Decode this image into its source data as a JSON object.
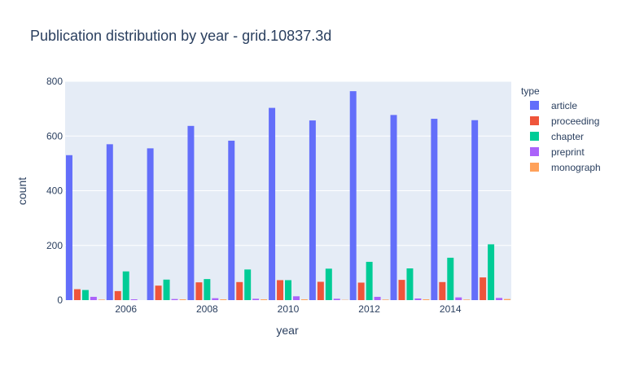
{
  "chart_data": {
    "type": "bar",
    "title": "Publication distribution by year - grid.10837.3d",
    "xlabel": "year",
    "ylabel": "count",
    "legend_title": "type",
    "legend_position": "right",
    "grid": true,
    "ylim": [
      0,
      800
    ],
    "y_ticks": [
      0,
      200,
      400,
      600,
      800
    ],
    "x_tick_labels": [
      "2006",
      "2008",
      "2010",
      "2012",
      "2014"
    ],
    "x_ticks": [
      2006,
      2008,
      2010,
      2012,
      2014
    ],
    "x": [
      2005,
      2006,
      2007,
      2008,
      2009,
      2010,
      2011,
      2012,
      2013,
      2014,
      2015
    ],
    "series": [
      {
        "name": "article",
        "color": "#636efa",
        "values": [
          530,
          570,
          555,
          637,
          583,
          703,
          657,
          764,
          677,
          663,
          658
        ]
      },
      {
        "name": "proceeding",
        "color": "#EF553B",
        "values": [
          40,
          33,
          53,
          65,
          66,
          73,
          67,
          64,
          74,
          66,
          83
        ]
      },
      {
        "name": "chapter",
        "color": "#00cc96",
        "values": [
          37,
          105,
          75,
          77,
          112,
          73,
          115,
          140,
          116,
          155,
          204
        ]
      },
      {
        "name": "preprint",
        "color": "#ab63fa",
        "values": [
          12,
          3,
          4,
          7,
          5,
          14,
          5,
          12,
          6,
          10,
          8
        ]
      },
      {
        "name": "monograph",
        "color": "#FFA15A",
        "values": [
          2,
          0,
          3,
          3,
          3,
          3,
          1,
          2,
          3,
          2,
          4
        ]
      }
    ]
  }
}
